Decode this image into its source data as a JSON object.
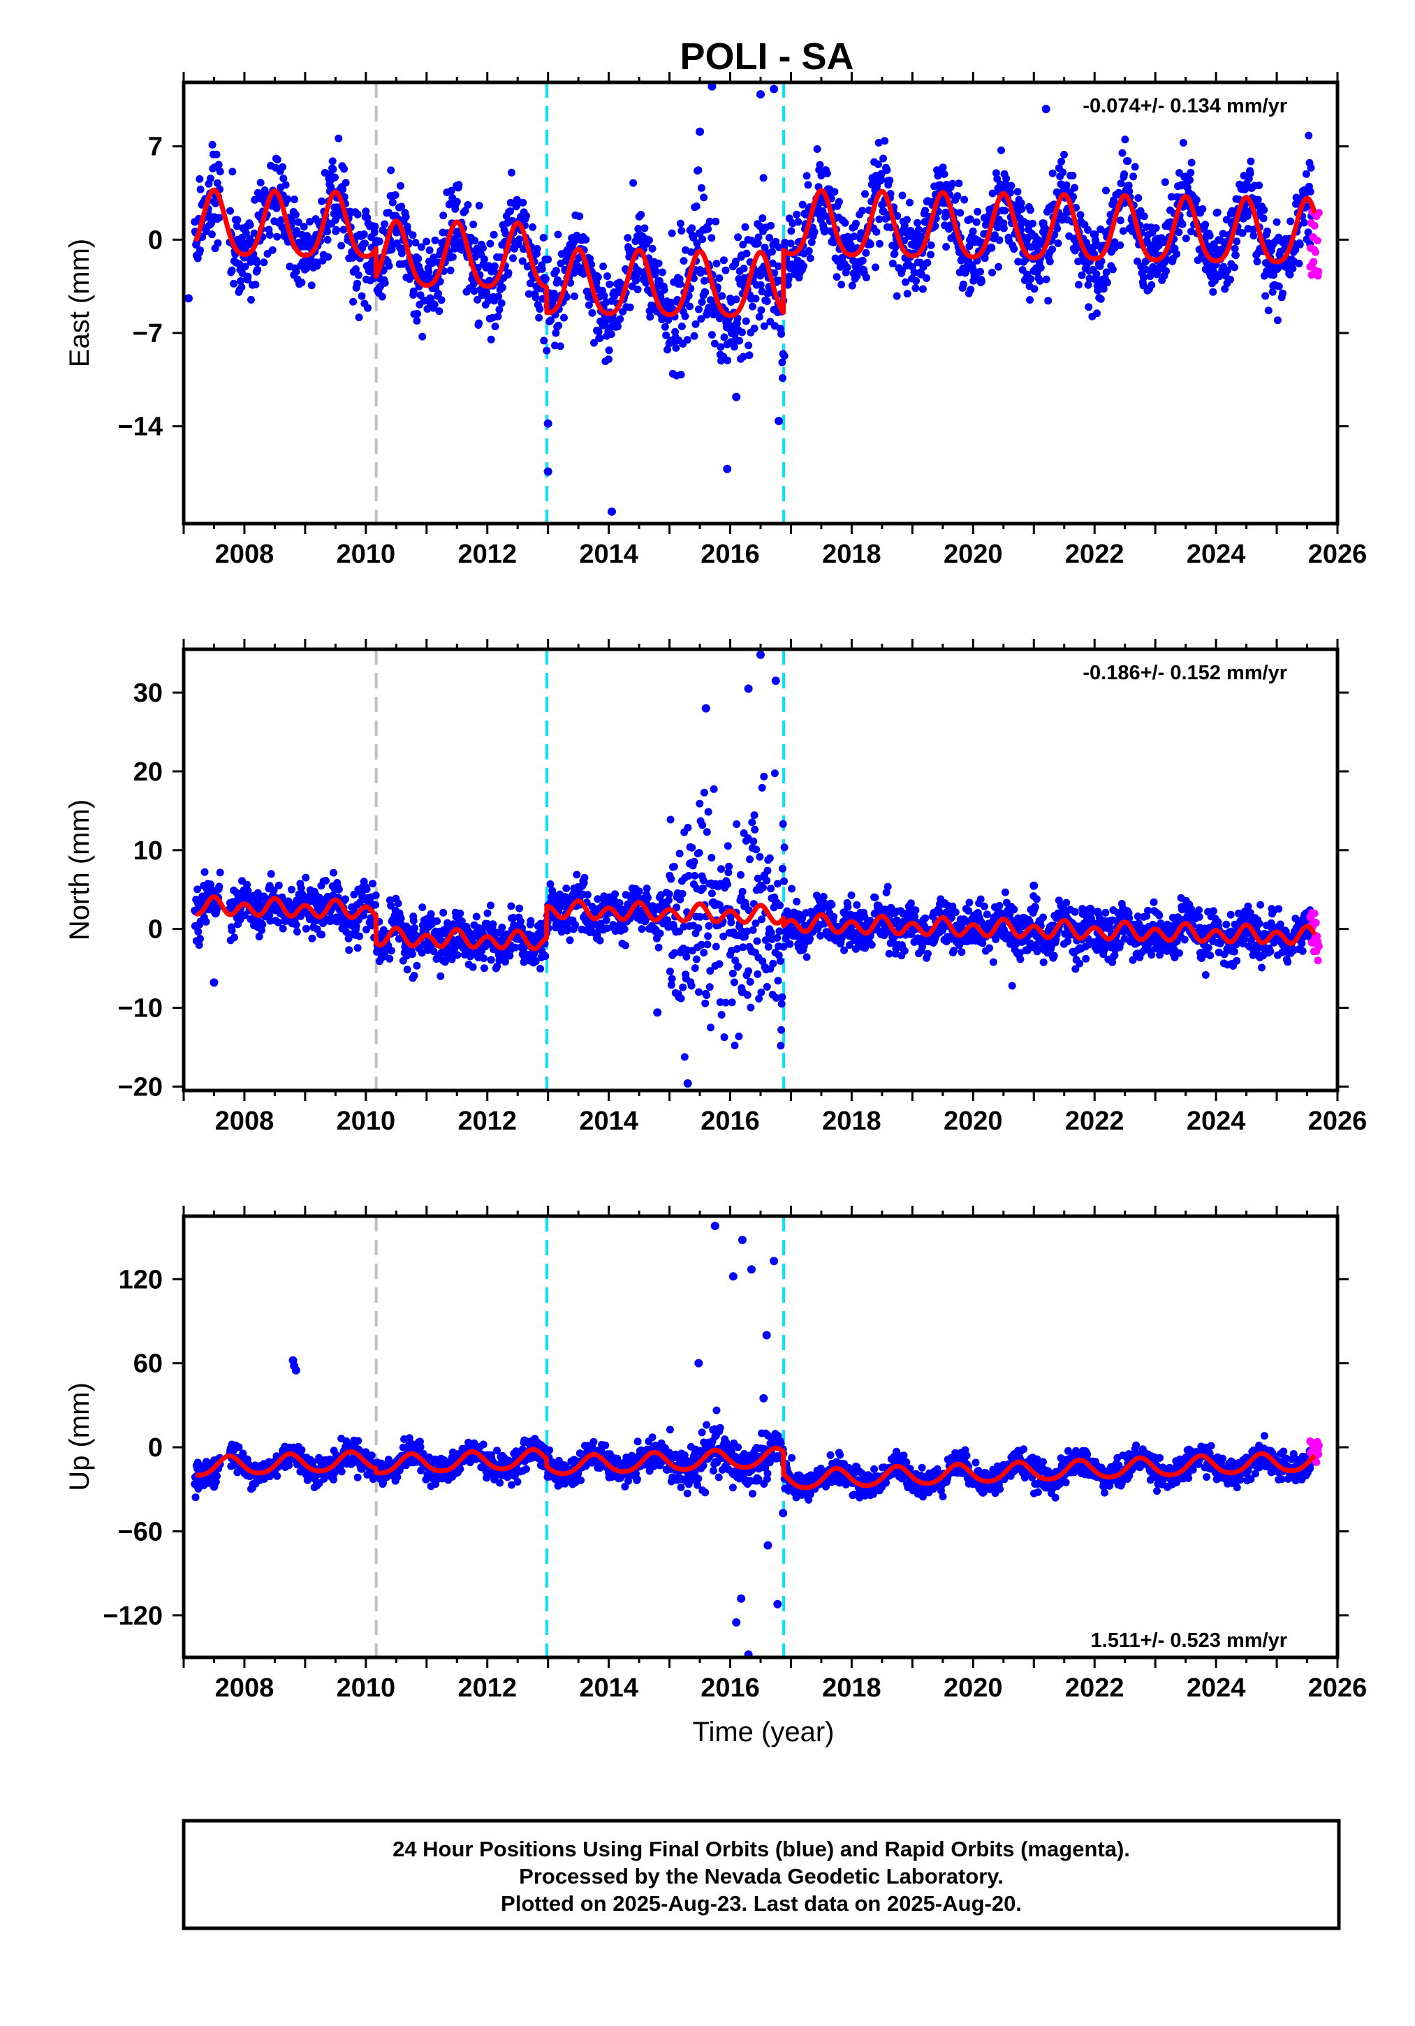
{
  "figure": {
    "title": "POLI - SA",
    "xlabel": "Time (year)",
    "footer_lines": [
      "24 Hour Positions Using Final Orbits (blue) and Rapid Orbits (magenta).",
      "Processed by the Nevada Geodetic Laboratory.",
      "Plotted on 2025-Aug-23. Last data on 2025-Aug-20."
    ]
  },
  "colors": {
    "final_orbits": "#0000ff",
    "rapid_orbits": "#ff00ff",
    "model": "#ff0000",
    "equipment_change": "#c0c0c0",
    "offset_event": "#00e5ff",
    "frame": "#000000"
  },
  "chart_data": [
    {
      "type": "scatter",
      "component": "East",
      "ylabel": "East (mm)",
      "rate_text": "-0.074+/- 0.134 mm/yr",
      "rate_position": "top-right",
      "xlim": [
        2007.0,
        2026.0
      ],
      "ylim": [
        -21.3,
        11.8
      ],
      "xticks": [
        2008,
        2010,
        2012,
        2014,
        2016,
        2018,
        2020,
        2022,
        2024,
        2026
      ],
      "yticks": [
        7,
        0,
        -7,
        -14
      ],
      "ytick_labels": [
        "7",
        "0",
        "−7",
        "−14"
      ],
      "vlines": [
        {
          "x": 2010.17,
          "kind": "equipment_change"
        },
        {
          "x": 2012.98,
          "kind": "offset_event"
        },
        {
          "x": 2016.88,
          "kind": "offset_event"
        }
      ],
      "model": {
        "segments": [
          {
            "x0": 2007.2,
            "x1": 2010.17,
            "offset": 0.3
          },
          {
            "x0": 2010.17,
            "x1": 2012.98,
            "offset": -1.8
          },
          {
            "x0": 2012.98,
            "x1": 2016.88,
            "offset": -3.7
          },
          {
            "x0": 2016.88,
            "x1": 2025.63,
            "offset": 1.0
          }
        ],
        "rate_mm_per_yr": -0.074,
        "annual_amplitude": 2.4,
        "annual_phase_peak": 0.5,
        "semiannual_amplitude": 0.4
      },
      "scatter_noise": 1.6,
      "outliers": [
        {
          "x": 2007.08,
          "y": -4.4
        },
        {
          "x": 2013.0,
          "y": -13.8
        },
        {
          "x": 2013.0,
          "y": -17.4
        },
        {
          "x": 2014.05,
          "y": -20.4
        },
        {
          "x": 2015.7,
          "y": 11.5
        },
        {
          "x": 2016.5,
          "y": 10.9
        },
        {
          "x": 2016.72,
          "y": 11.3
        },
        {
          "x": 2015.95,
          "y": -17.2
        },
        {
          "x": 2016.8,
          "y": -13.6
        },
        {
          "x": 2015.5,
          "y": 8.1
        },
        {
          "x": 2016.1,
          "y": -11.8
        },
        {
          "x": 2021.2,
          "y": 9.8
        }
      ],
      "rapid_points_x": [
        2025.55,
        2025.7
      ],
      "rapid_points_y": [
        -2.8,
        2.6
      ]
    },
    {
      "type": "scatter",
      "component": "North",
      "ylabel": "North (mm)",
      "rate_text": "-0.186+/- 0.152 mm/yr",
      "rate_position": "top-right",
      "xlim": [
        2007.0,
        2026.0
      ],
      "ylim": [
        -20.5,
        35.5
      ],
      "xticks": [
        2008,
        2010,
        2012,
        2014,
        2016,
        2018,
        2020,
        2022,
        2024,
        2026
      ],
      "yticks": [
        30,
        20,
        10,
        0,
        -10,
        -20
      ],
      "ytick_labels": [
        "30",
        "20",
        "10",
        "0",
        "−10",
        "−20"
      ],
      "vlines": [
        {
          "x": 2010.17,
          "kind": "equipment_change"
        },
        {
          "x": 2012.98,
          "kind": "offset_event"
        },
        {
          "x": 2016.88,
          "kind": "offset_event"
        }
      ],
      "model": {
        "segments": [
          {
            "x0": 2007.2,
            "x1": 2010.17,
            "offset": 1.2
          },
          {
            "x0": 2010.17,
            "x1": 2012.98,
            "offset": -2.2
          },
          {
            "x0": 2012.98,
            "x1": 2016.88,
            "offset": 1.8
          },
          {
            "x0": 2016.88,
            "x1": 2025.63,
            "offset": 0.8
          }
        ],
        "rate_mm_per_yr": -0.186,
        "annual_amplitude": 0.4,
        "annual_phase_peak": 0.5,
        "semiannual_amplitude": 0.9
      },
      "scatter_noise": 1.5,
      "outliers": [
        {
          "x": 2015.3,
          "y": -19.6
        },
        {
          "x": 2016.5,
          "y": 34.8
        },
        {
          "x": 2016.75,
          "y": 31.5
        },
        {
          "x": 2016.3,
          "y": 30.5
        },
        {
          "x": 2015.6,
          "y": 28.0
        },
        {
          "x": 2007.5,
          "y": -6.8
        },
        {
          "x": 2014.8,
          "y": -10.6
        },
        {
          "x": 2016.2,
          "y": -8.0
        },
        {
          "x": 2021.0,
          "y": 5.5
        }
      ],
      "rapid_points_x": [
        2025.55,
        2025.7
      ],
      "rapid_points_y": [
        -4.2,
        2.6
      ]
    },
    {
      "type": "scatter",
      "component": "Up",
      "ylabel": "Up (mm)",
      "rate_text": "1.511+/- 0.523 mm/yr",
      "rate_position": "bottom-right",
      "xlim": [
        2007.0,
        2026.0
      ],
      "ylim": [
        -150.0,
        165.0
      ],
      "xticks": [
        2008,
        2010,
        2012,
        2014,
        2016,
        2018,
        2020,
        2022,
        2024,
        2026
      ],
      "yticks": [
        120,
        60,
        0,
        -60,
        -120
      ],
      "ytick_labels": [
        "120",
        "60",
        "0",
        "−60",
        "−120"
      ],
      "vlines": [
        {
          "x": 2010.17,
          "kind": "equipment_change"
        },
        {
          "x": 2012.98,
          "kind": "offset_event"
        },
        {
          "x": 2016.88,
          "kind": "offset_event"
        }
      ],
      "model": {
        "segments": [
          {
            "x0": 2007.2,
            "x1": 2010.17,
            "offset": -1.0
          },
          {
            "x0": 2010.17,
            "x1": 2012.98,
            "offset": -4.0
          },
          {
            "x0": 2012.98,
            "x1": 2016.88,
            "offset": -9.0
          },
          {
            "x0": 2016.88,
            "x1": 2025.63,
            "offset": -25.0
          }
        ],
        "rate_mm_per_yr": 1.511,
        "annual_amplitude": 6.5,
        "annual_phase_peak": 0.75,
        "semiannual_amplitude": 0.8
      },
      "scatter_noise": 4.8,
      "outliers": [
        {
          "x": 2008.8,
          "y": 62
        },
        {
          "x": 2008.82,
          "y": 58
        },
        {
          "x": 2008.85,
          "y": 55
        },
        {
          "x": 2015.75,
          "y": 158
        },
        {
          "x": 2016.2,
          "y": 148
        },
        {
          "x": 2016.72,
          "y": 133
        },
        {
          "x": 2016.05,
          "y": 122
        },
        {
          "x": 2016.35,
          "y": 127
        },
        {
          "x": 2016.6,
          "y": 80
        },
        {
          "x": 2016.1,
          "y": -125
        },
        {
          "x": 2016.18,
          "y": -108
        },
        {
          "x": 2016.3,
          "y": -148
        },
        {
          "x": 2016.62,
          "y": -70
        },
        {
          "x": 2016.78,
          "y": -112
        },
        {
          "x": 2016.87,
          "y": -47
        },
        {
          "x": 2015.48,
          "y": 60
        },
        {
          "x": 2016.55,
          "y": 35
        },
        {
          "x": 2007.5,
          "y": -28
        }
      ],
      "rapid_points_x": [
        2025.55,
        2025.7
      ],
      "rapid_points_y": [
        -11,
        6
      ]
    }
  ]
}
